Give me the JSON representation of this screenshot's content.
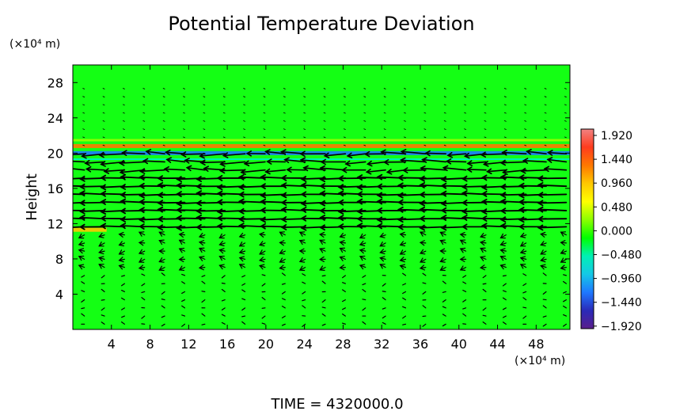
{
  "chart_data": {
    "type": "heatmap",
    "title": "Potential Temperature Deviation",
    "ylabel": "Height",
    "y_unit": "(×10⁴ m)",
    "x_unit": "(×10⁴ m)",
    "xlim": [
      0,
      51.5
    ],
    "ylim": [
      0,
      30
    ],
    "x_ticks": [
      "4",
      "8",
      "12",
      "16",
      "20",
      "24",
      "28",
      "32",
      "36",
      "40",
      "44",
      "48"
    ],
    "y_ticks": [
      "4",
      "8",
      "12",
      "16",
      "20",
      "24",
      "28"
    ],
    "colorbar": {
      "labels": [
        "1.920",
        "1.440",
        "0.960",
        "0.480",
        "0.000",
        "−0.480",
        "−0.960",
        "−1.440",
        "−1.920"
      ],
      "min": -1.92,
      "max": 1.92,
      "colors": [
        "#5a1e8c",
        "#2a2ab8",
        "#1e78ff",
        "#14c8e6",
        "#00f0b4",
        "#00ff00",
        "#8cff00",
        "#ffff00",
        "#ffc800",
        "#ff7800",
        "#ff3c1e",
        "#f08282"
      ]
    },
    "field_background": "#14ff14",
    "bands": [
      {
        "y": 20.0,
        "value": -1.2,
        "x0": 0,
        "x1": 51.5
      },
      {
        "y": 20.8,
        "value": 1.1,
        "x0": 0,
        "x1": 51.5
      },
      {
        "y": 11.3,
        "value": 0.8,
        "x0": 0,
        "x1": 3.5
      }
    ],
    "footer": "TIME = 4320000.0"
  }
}
